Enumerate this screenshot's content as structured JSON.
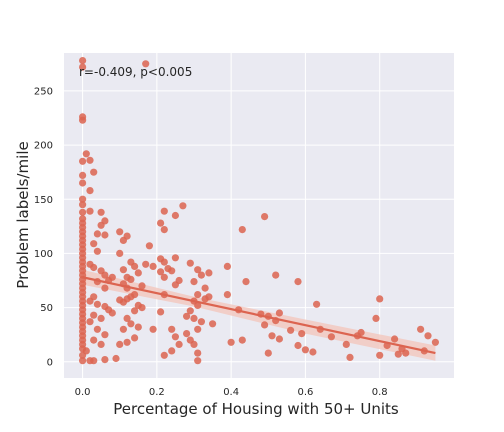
{
  "chart_data": {
    "type": "scatter",
    "title": "",
    "xlabel": "Percentage of Housing with 50+ Units",
    "ylabel": "Problem labels/mile",
    "annotation": "r=-0.409, p<0.005",
    "xlim": [
      -0.05,
      1.0
    ],
    "ylim": [
      -15,
      285
    ],
    "x_ticks": [
      0.0,
      0.2,
      0.4,
      0.6,
      0.8
    ],
    "y_ticks": [
      0,
      50,
      100,
      150,
      200,
      250
    ],
    "x_tick_labels": [
      "0.0",
      "0.2",
      "0.4",
      "0.6",
      "0.8"
    ],
    "y_tick_labels": [
      "0",
      "50",
      "100",
      "150",
      "200",
      "250"
    ],
    "grid": true,
    "legend": "none",
    "colors": {
      "points": "#dc6450",
      "regression": "#dc6450",
      "band": "#f2c9c1",
      "background": "#eaeaf2",
      "grid": "#ffffff"
    },
    "regression": {
      "x": [
        0.0,
        0.95
      ],
      "y": [
        78,
        8
      ]
    },
    "band": {
      "upper": [
        [
          0.0,
          85
        ],
        [
          0.3,
          60
        ],
        [
          0.6,
          39
        ],
        [
          0.95,
          15
        ]
      ],
      "lower": [
        [
          0.0,
          71
        ],
        [
          0.3,
          51
        ],
        [
          0.6,
          26
        ],
        [
          0.95,
          1
        ]
      ]
    },
    "points": [
      [
        0.0,
        278
      ],
      [
        0.0,
        272
      ],
      [
        0.0,
        226
      ],
      [
        0.0,
        223
      ],
      [
        0.0,
        185
      ],
      [
        0.0,
        172
      ],
      [
        0.0,
        165
      ],
      [
        0.0,
        150
      ],
      [
        0.0,
        145
      ],
      [
        0.0,
        138
      ],
      [
        0.0,
        132
      ],
      [
        0.0,
        128
      ],
      [
        0.0,
        124
      ],
      [
        0.0,
        120
      ],
      [
        0.0,
        116
      ],
      [
        0.0,
        112
      ],
      [
        0.0,
        108
      ],
      [
        0.0,
        104
      ],
      [
        0.0,
        100
      ],
      [
        0.0,
        96
      ],
      [
        0.0,
        92
      ],
      [
        0.0,
        88
      ],
      [
        0.0,
        84
      ],
      [
        0.0,
        80
      ],
      [
        0.0,
        76
      ],
      [
        0.0,
        72
      ],
      [
        0.0,
        68
      ],
      [
        0.0,
        64
      ],
      [
        0.0,
        60
      ],
      [
        0.0,
        56
      ],
      [
        0.0,
        52
      ],
      [
        0.0,
        48
      ],
      [
        0.0,
        44
      ],
      [
        0.0,
        40
      ],
      [
        0.0,
        36
      ],
      [
        0.0,
        32
      ],
      [
        0.0,
        28
      ],
      [
        0.0,
        24
      ],
      [
        0.0,
        20
      ],
      [
        0.0,
        16
      ],
      [
        0.0,
        12
      ],
      [
        0.0,
        6
      ],
      [
        0.0,
        1
      ],
      [
        0.01,
        192
      ],
      [
        0.02,
        186
      ],
      [
        0.02,
        158
      ],
      [
        0.03,
        175
      ],
      [
        0.02,
        139
      ],
      [
        0.05,
        138
      ],
      [
        0.06,
        130
      ],
      [
        0.05,
        126
      ],
      [
        0.04,
        118
      ],
      [
        0.06,
        117
      ],
      [
        0.03,
        109
      ],
      [
        0.04,
        102
      ],
      [
        0.02,
        90
      ],
      [
        0.03,
        87
      ],
      [
        0.05,
        84
      ],
      [
        0.06,
        80
      ],
      [
        0.07,
        75
      ],
      [
        0.08,
        78
      ],
      [
        0.04,
        74
      ],
      [
        0.06,
        68
      ],
      [
        0.03,
        60
      ],
      [
        0.02,
        56
      ],
      [
        0.04,
        53
      ],
      [
        0.06,
        51
      ],
      [
        0.07,
        48
      ],
      [
        0.08,
        45
      ],
      [
        0.03,
        43
      ],
      [
        0.05,
        40
      ],
      [
        0.02,
        37
      ],
      [
        0.04,
        30
      ],
      [
        0.06,
        25
      ],
      [
        0.03,
        20
      ],
      [
        0.05,
        16
      ],
      [
        0.01,
        10
      ],
      [
        0.06,
        2
      ],
      [
        0.03,
        1
      ],
      [
        0.02,
        1
      ],
      [
        0.1,
        120
      ],
      [
        0.11,
        112
      ],
      [
        0.12,
        116
      ],
      [
        0.1,
        100
      ],
      [
        0.13,
        92
      ],
      [
        0.14,
        88
      ],
      [
        0.11,
        85
      ],
      [
        0.12,
        78
      ],
      [
        0.13,
        76
      ],
      [
        0.15,
        82
      ],
      [
        0.11,
        72
      ],
      [
        0.16,
        70
      ],
      [
        0.12,
        68
      ],
      [
        0.14,
        62
      ],
      [
        0.13,
        60
      ],
      [
        0.1,
        57
      ],
      [
        0.11,
        55
      ],
      [
        0.12,
        58
      ],
      [
        0.15,
        52
      ],
      [
        0.16,
        50
      ],
      [
        0.14,
        47
      ],
      [
        0.12,
        40
      ],
      [
        0.13,
        35
      ],
      [
        0.15,
        32
      ],
      [
        0.11,
        30
      ],
      [
        0.14,
        22
      ],
      [
        0.12,
        18
      ],
      [
        0.1,
        16
      ],
      [
        0.09,
        3
      ],
      [
        0.17,
        275
      ],
      [
        0.18,
        107
      ],
      [
        0.19,
        88
      ],
      [
        0.17,
        90
      ],
      [
        0.19,
        30
      ],
      [
        0.22,
        139
      ],
      [
        0.21,
        128
      ],
      [
        0.22,
        122
      ],
      [
        0.27,
        144
      ],
      [
        0.25,
        135
      ],
      [
        0.21,
        95
      ],
      [
        0.22,
        92
      ],
      [
        0.25,
        96
      ],
      [
        0.23,
        86
      ],
      [
        0.24,
        84
      ],
      [
        0.21,
        83
      ],
      [
        0.22,
        78
      ],
      [
        0.26,
        75
      ],
      [
        0.25,
        71
      ],
      [
        0.22,
        62
      ],
      [
        0.21,
        46
      ],
      [
        0.24,
        30
      ],
      [
        0.25,
        23
      ],
      [
        0.26,
        16
      ],
      [
        0.24,
        10
      ],
      [
        0.22,
        6
      ],
      [
        0.29,
        91
      ],
      [
        0.31,
        85
      ],
      [
        0.32,
        80
      ],
      [
        0.34,
        82
      ],
      [
        0.3,
        74
      ],
      [
        0.33,
        68
      ],
      [
        0.31,
        62
      ],
      [
        0.34,
        60
      ],
      [
        0.33,
        58
      ],
      [
        0.3,
        56
      ],
      [
        0.31,
        52
      ],
      [
        0.29,
        47
      ],
      [
        0.28,
        42
      ],
      [
        0.3,
        40
      ],
      [
        0.32,
        37
      ],
      [
        0.35,
        35
      ],
      [
        0.31,
        30
      ],
      [
        0.28,
        26
      ],
      [
        0.29,
        20
      ],
      [
        0.3,
        16
      ],
      [
        0.31,
        8
      ],
      [
        0.31,
        1
      ],
      [
        0.39,
        88
      ],
      [
        0.43,
        122
      ],
      [
        0.44,
        74
      ],
      [
        0.39,
        62
      ],
      [
        0.42,
        48
      ],
      [
        0.4,
        18
      ],
      [
        0.43,
        20
      ],
      [
        0.49,
        134
      ],
      [
        0.52,
        80
      ],
      [
        0.48,
        44
      ],
      [
        0.5,
        42
      ],
      [
        0.53,
        45
      ],
      [
        0.52,
        38
      ],
      [
        0.49,
        34
      ],
      [
        0.51,
        24
      ],
      [
        0.53,
        21
      ],
      [
        0.5,
        8
      ],
      [
        0.58,
        74
      ],
      [
        0.59,
        26
      ],
      [
        0.56,
        29
      ],
      [
        0.58,
        15
      ],
      [
        0.6,
        11
      ],
      [
        0.62,
        9
      ],
      [
        0.63,
        53
      ],
      [
        0.64,
        30
      ],
      [
        0.67,
        23
      ],
      [
        0.71,
        16
      ],
      [
        0.74,
        24
      ],
      [
        0.72,
        4
      ],
      [
        0.75,
        27
      ],
      [
        0.8,
        58
      ],
      [
        0.79,
        40
      ],
      [
        0.82,
        15
      ],
      [
        0.8,
        6
      ],
      [
        0.84,
        21
      ],
      [
        0.86,
        12
      ],
      [
        0.85,
        7
      ],
      [
        0.87,
        8
      ],
      [
        0.91,
        30
      ],
      [
        0.92,
        10
      ],
      [
        0.93,
        24
      ],
      [
        0.95,
        18
      ]
    ]
  }
}
